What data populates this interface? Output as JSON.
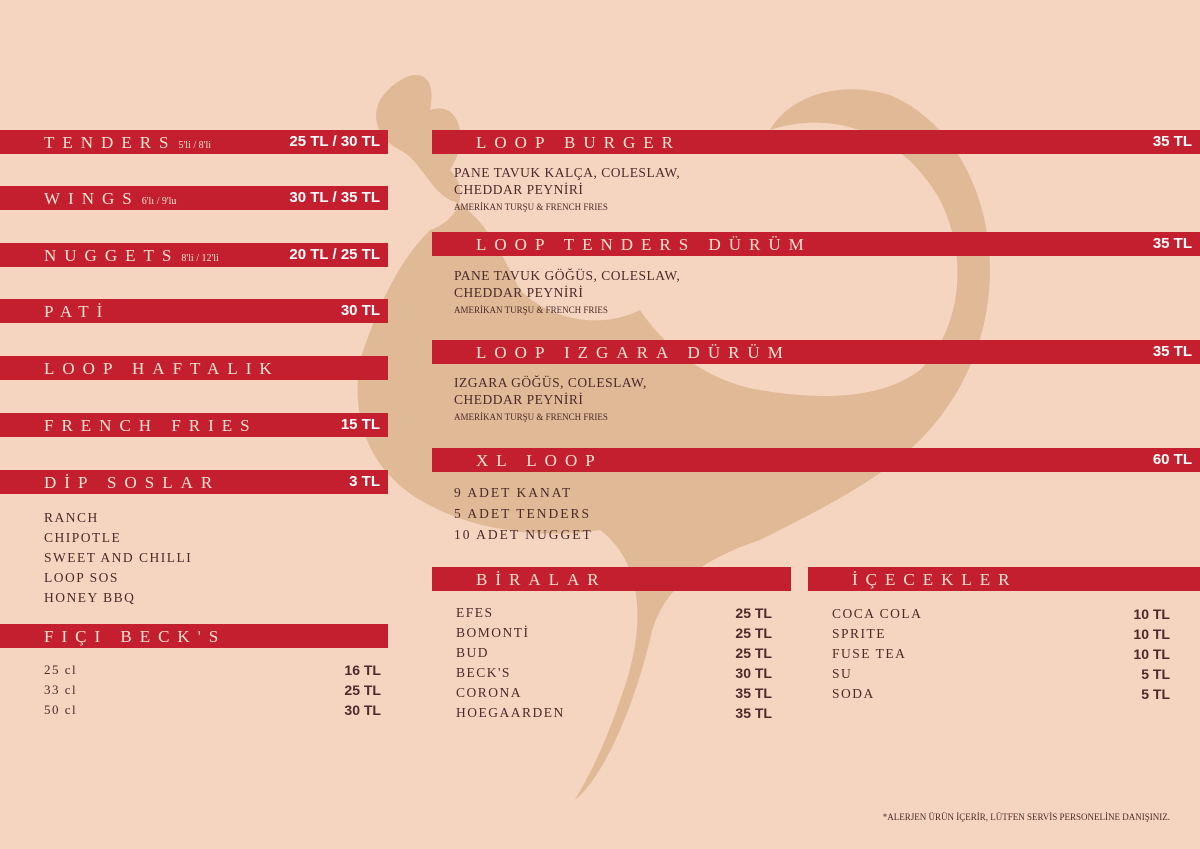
{
  "left": [
    {
      "title": "TENDERS",
      "note": "5'li / 8'li",
      "price": "25 TL / 30 TL"
    },
    {
      "title": "WINGS",
      "note": "6'lı / 9'lu",
      "price": "30 TL / 35 TL"
    },
    {
      "title": "NUGGETS",
      "note": "8'li / 12'li",
      "price": "20 TL / 25 TL"
    },
    {
      "title": "PATİ",
      "price": "30 TL"
    },
    {
      "title": "LOOP HAFTALIK"
    },
    {
      "title": "FRENCH FRIES",
      "price": "15 TL"
    },
    {
      "title": "DİP SOSLAR",
      "price": "3 TL",
      "items": [
        "RANCH",
        "CHIPOTLE",
        "SWEET AND CHILLI",
        "LOOP SOS",
        "HONEY BBQ"
      ]
    }
  ],
  "fici": {
    "title": "FIÇI BECK'S",
    "items": [
      {
        "name": "25 cl",
        "price": "16 TL"
      },
      {
        "name": "33 cl",
        "price": "25 TL"
      },
      {
        "name": "50 cl",
        "price": "30 TL"
      }
    ]
  },
  "right": [
    {
      "title": "LOOP BURGER",
      "price": "35 TL",
      "desc": [
        "PANE TAVUK KALÇA, COLESLAW,",
        "CHEDDAR PEYNİRİ"
      ],
      "extra": "AMERİKAN TURŞU & FRENCH FRIES"
    },
    {
      "title": "LOOP TENDERS DÜRÜM",
      "price": "35 TL",
      "desc": [
        "PANE TAVUK GÖĞÜS, COLESLAW,",
        "CHEDDAR PEYNİRİ"
      ],
      "extra": "AMERİKAN TURŞU & FRENCH FRIES"
    },
    {
      "title": "LOOP IZGARA DÜRÜM",
      "price": "35 TL",
      "desc": [
        "IZGARA GÖĞÜS, COLESLAW,",
        "CHEDDAR PEYNİRİ"
      ],
      "extra": "AMERİKAN TURŞU & FRENCH FRIES"
    },
    {
      "title": "XL LOOP",
      "price": "60 TL",
      "desc": [
        "9 ADET KANAT",
        "5 ADET TENDERS",
        "10 ADET NUGGET"
      ]
    }
  ],
  "biralar": {
    "title": "BİRALAR",
    "items": [
      {
        "name": "EFES",
        "price": "25 TL"
      },
      {
        "name": "BOMONTİ",
        "price": "25 TL"
      },
      {
        "name": "BUD",
        "price": "25 TL"
      },
      {
        "name": "BECK'S",
        "price": "30 TL"
      },
      {
        "name": "CORONA",
        "price": "35 TL"
      },
      {
        "name": "HOEGAARDEN",
        "price": "35 TL"
      }
    ]
  },
  "icecekler": {
    "title": "İÇECEKLER",
    "items": [
      {
        "name": "COCA COLA",
        "price": "10 TL"
      },
      {
        "name": "SPRITE",
        "price": "10 TL"
      },
      {
        "name": "FUSE TEA",
        "price": "10 TL"
      },
      {
        "name": "SU",
        "price": "5 TL"
      },
      {
        "name": "SODA",
        "price": "5 TL"
      }
    ]
  },
  "footer": "*ALERJEN ÜRÜN İÇERİR, LÜTFEN SERVİS PERSONELİNE DANIŞINIZ."
}
